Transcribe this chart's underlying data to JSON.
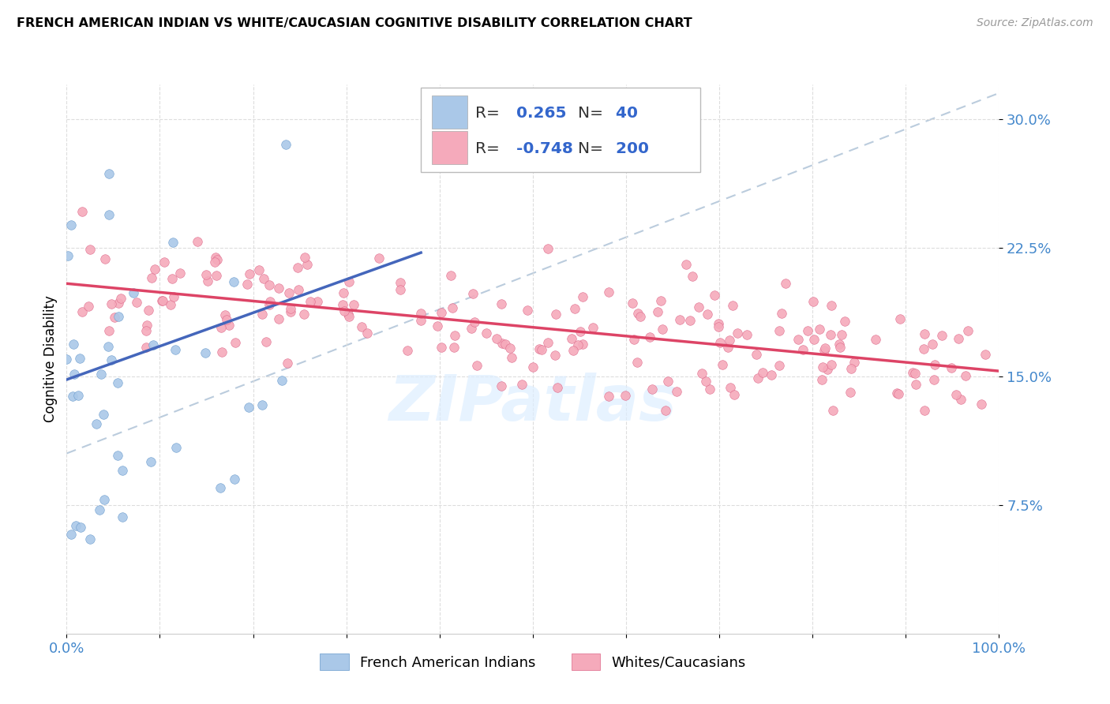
{
  "title": "FRENCH AMERICAN INDIAN VS WHITE/CAUCASIAN COGNITIVE DISABILITY CORRELATION CHART",
  "source": "Source: ZipAtlas.com",
  "ylabel": "Cognitive Disability",
  "xlim": [
    0,
    1.0
  ],
  "ylim": [
    0.0,
    0.32
  ],
  "yticks": [
    0.075,
    0.15,
    0.225,
    0.3
  ],
  "ytick_labels": [
    "7.5%",
    "15.0%",
    "22.5%",
    "30.0%"
  ],
  "xtick_labels": [
    "0.0%",
    "",
    "",
    "",
    "",
    "",
    "",
    "",
    "",
    "",
    "100.0%"
  ],
  "blue_R": 0.265,
  "blue_N": 40,
  "pink_R": -0.748,
  "pink_N": 200,
  "blue_fill": "#aac8e8",
  "pink_fill": "#f5aabb",
  "blue_edge": "#6699cc",
  "pink_edge": "#dd6688",
  "blue_line": "#4466bb",
  "pink_line": "#dd4466",
  "dash_color": "#bbccdd",
  "watermark": "ZIPatlas",
  "legend_blue_label": "French American Indians",
  "legend_pink_label": "Whites/Caucasians",
  "blue_line_x": [
    0.0,
    0.38
  ],
  "blue_line_y": [
    0.148,
    0.222
  ],
  "pink_line_x": [
    0.0,
    1.0
  ],
  "pink_line_y": [
    0.204,
    0.153
  ],
  "dash_line_x": [
    0.0,
    1.0
  ],
  "dash_line_y": [
    0.105,
    0.315
  ]
}
